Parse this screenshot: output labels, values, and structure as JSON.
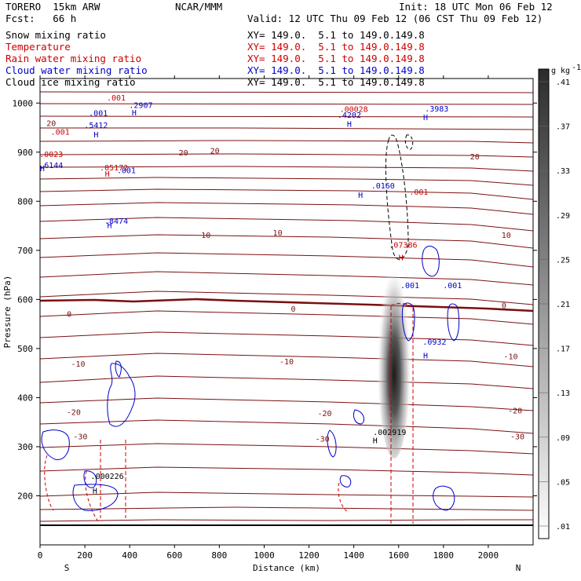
{
  "header": {
    "model": "TORERO  15km ARW",
    "center": "NCAR/MMM",
    "init": "Init: 18 UTC Mon 06 Feb 12",
    "fcst": "Fcst:   66 h",
    "valid": "Valid: 12 UTC Thu 09 Feb 12 (06 CST Thu 09 Feb 12)",
    "fields": [
      {
        "name": "Snow mixing ratio",
        "xy": "XY= 149.0.  5.1 to 149.0.149.8",
        "color": "#000000"
      },
      {
        "name": "Temperature",
        "xy": "XY= 149.0.  5.1 to 149.0.149.8",
        "color": "#cc0000"
      },
      {
        "name": "Rain water mixing ratio",
        "xy": "XY= 149.0.  5.1 to 149.0.149.8",
        "color": "#cc0000"
      },
      {
        "name": "Cloud water mixing ratio",
        "xy": "XY= 149.0.  5.1 to 149.0.149.8",
        "color": "#0000cc"
      },
      {
        "name": "Cloud ice mixing ratio",
        "xy": "XY= 149.0.  5.1 to 149.0.149.8",
        "color": "#000000"
      }
    ]
  },
  "chart_data": {
    "type": "contour-cross-section",
    "xlabel": "Distance (km)",
    "ylabel": "Pressure (hPa)",
    "xlim": [
      0,
      2200
    ],
    "ylim": [
      1050,
      100
    ],
    "x_ticks": [
      0,
      200,
      400,
      600,
      800,
      1000,
      1200,
      1400,
      1600,
      1800,
      2000
    ],
    "y_ticks": [
      200,
      300,
      400,
      500,
      600,
      700,
      800,
      900,
      1000
    ],
    "left_label": "S",
    "right_label": "N",
    "colorbar": {
      "unit": "g kg",
      "unit_exp": "-1",
      "ticks": [
        ".01",
        ".05",
        ".09",
        ".13",
        ".17",
        ".21",
        ".25",
        ".29",
        ".33",
        ".37",
        ".41"
      ]
    },
    "temperature_labels": [
      {
        "text": "-30",
        "x": 180,
        "p": 315
      },
      {
        "text": "-30",
        "x": 1260,
        "p": 310
      },
      {
        "text": "-30",
        "x": 2130,
        "p": 315
      },
      {
        "text": "-20",
        "x": 150,
        "p": 365
      },
      {
        "text": "-20",
        "x": 1270,
        "p": 362
      },
      {
        "text": "-20",
        "x": 2120,
        "p": 368
      },
      {
        "text": "-10",
        "x": 170,
        "p": 463
      },
      {
        "text": "-10",
        "x": 1100,
        "p": 468
      },
      {
        "text": "-10",
        "x": 2100,
        "p": 478
      },
      {
        "text": "0",
        "x": 130,
        "p": 565
      },
      {
        "text": "0",
        "x": 1130,
        "p": 575
      },
      {
        "text": "0",
        "x": 2070,
        "p": 582
      },
      {
        "text": "10",
        "x": 740,
        "p": 725
      },
      {
        "text": "10",
        "x": 1060,
        "p": 730
      },
      {
        "text": "10",
        "x": 2080,
        "p": 725
      },
      {
        "text": "20",
        "x": 640,
        "p": 893
      },
      {
        "text": "20",
        "x": 780,
        "p": 897
      },
      {
        "text": "20",
        "x": 1940,
        "p": 885
      },
      {
        "text": "20",
        "x": 50,
        "p": 953
      }
    ],
    "snow_labels": [
      {
        "text": ".000226",
        "x": 300,
        "p": 234
      },
      {
        "text": ".002919",
        "x": 1560,
        "p": 324
      }
    ],
    "rain_labels": [
      {
        "text": ".05172",
        "x": 330,
        "p": 863
      },
      {
        "text": ".0023",
        "x": 50,
        "p": 890
      },
      {
        "text": ".001",
        "x": 90,
        "p": 936
      },
      {
        "text": ".07386",
        "x": 1620,
        "p": 705
      },
      {
        "text": ".001",
        "x": 1690,
        "p": 813
      },
      {
        "text": ".00028",
        "x": 1400,
        "p": 982
      },
      {
        "text": ".001",
        "x": 340,
        "p": 1005
      }
    ],
    "cloud_labels": [
      {
        "text": ".8474",
        "x": 340,
        "p": 754
      },
      {
        "text": ".001",
        "x": 385,
        "p": 857
      },
      {
        "text": ".6144",
        "x": 50,
        "p": 868
      },
      {
        "text": ".5412",
        "x": 250,
        "p": 949
      },
      {
        "text": ".001",
        "x": 260,
        "p": 974
      },
      {
        "text": ".2907",
        "x": 450,
        "p": 990
      },
      {
        "text": ".0932",
        "x": 1760,
        "p": 508
      },
      {
        "text": ".001",
        "x": 1650,
        "p": 623
      },
      {
        "text": ".001",
        "x": 1840,
        "p": 623
      },
      {
        "text": ".0160",
        "x": 1530,
        "p": 826
      },
      {
        "text": ".4202",
        "x": 1380,
        "p": 970
      },
      {
        "text": ".3983",
        "x": 1770,
        "p": 983
      }
    ],
    "highs": [
      {
        "x": 245,
        "p": 205,
        "color": "#000000"
      },
      {
        "x": 1495,
        "p": 307,
        "color": "#000000"
      },
      {
        "x": 1720,
        "p": 480,
        "color": "#0000cc"
      },
      {
        "x": 1610,
        "p": 680,
        "color": "#cc0000"
      },
      {
        "x": 1430,
        "p": 807,
        "color": "#0000cc"
      },
      {
        "x": 300,
        "p": 850,
        "color": "#cc0000"
      },
      {
        "x": 1380,
        "p": 952,
        "color": "#0000cc"
      },
      {
        "x": 250,
        "p": 930,
        "color": "#0000cc"
      },
      {
        "x": 420,
        "p": 975,
        "color": "#0000cc"
      },
      {
        "x": 1720,
        "p": 965,
        "color": "#0000cc"
      },
      {
        "x": 310,
        "p": 745,
        "color": "#0000cc"
      },
      {
        "x": 10,
        "p": 861,
        "color": "#0000cc"
      }
    ]
  }
}
